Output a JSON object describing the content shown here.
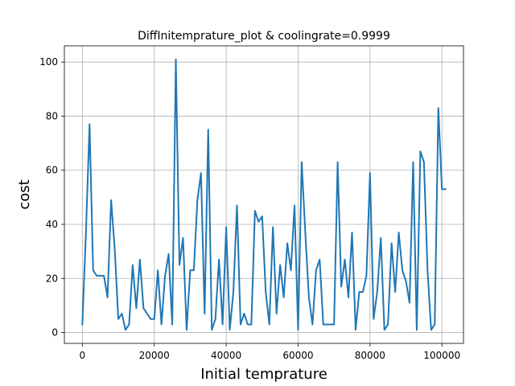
{
  "chart_data": {
    "type": "line",
    "title": "DiffInitemprature_plot & coolingrate=0.9999",
    "xlabel": "Initial temprature",
    "ylabel": "cost",
    "xlim": [
      -5000,
      106000
    ],
    "ylim": [
      -4,
      106
    ],
    "xticks": [
      0,
      20000,
      40000,
      60000,
      80000,
      100000
    ],
    "yticks": [
      0,
      20,
      40,
      60,
      80,
      100
    ],
    "grid": true,
    "series": [
      {
        "name": "",
        "color": "#1f77b4",
        "x": [
          0,
          1000,
          2000,
          3000,
          4000,
          5000,
          6000,
          7000,
          8000,
          9000,
          10000,
          11000,
          12000,
          13000,
          14000,
          15000,
          16000,
          17000,
          18000,
          19000,
          20000,
          21000,
          22000,
          23000,
          24000,
          25000,
          26000,
          27000,
          28000,
          29000,
          30000,
          31000,
          32000,
          33000,
          34000,
          35000,
          36000,
          37000,
          38000,
          39000,
          40000,
          41000,
          42000,
          43000,
          44000,
          45000,
          46000,
          47000,
          48000,
          49000,
          50000,
          51000,
          52000,
          53000,
          54000,
          55000,
          56000,
          57000,
          58000,
          59000,
          60000,
          61000,
          62000,
          63000,
          64000,
          65000,
          66000,
          67000,
          68000,
          69000,
          70000,
          71000,
          72000,
          73000,
          74000,
          75000,
          76000,
          77000,
          78000,
          79000,
          80000,
          81000,
          82000,
          83000,
          84000,
          85000,
          86000,
          87000,
          88000,
          89000,
          90000,
          91000,
          92000,
          93000,
          94000,
          95000,
          96000,
          97000,
          98000,
          99000,
          100000,
          101000
        ],
        "y": [
          3,
          37,
          77,
          23,
          21,
          21,
          21,
          13,
          49,
          31,
          5,
          7,
          1,
          3,
          25,
          9,
          27,
          9,
          7,
          5,
          5,
          23,
          3,
          21,
          29,
          3,
          101,
          25,
          35,
          1,
          23,
          23,
          49,
          59,
          7,
          75,
          1,
          5,
          27,
          3,
          39,
          1,
          15,
          47,
          3,
          7,
          3,
          3,
          45,
          41,
          43,
          15,
          3,
          39,
          7,
          25,
          13,
          33,
          23,
          47,
          1,
          63,
          37,
          13,
          3,
          23,
          27,
          3,
          3,
          3,
          3,
          63,
          17,
          27,
          13,
          37,
          1,
          15,
          15,
          21,
          59,
          5,
          15,
          35,
          1,
          3,
          33,
          15,
          37,
          23,
          19,
          11,
          63,
          1,
          67,
          63,
          23,
          1,
          3,
          83,
          53,
          53
        ]
      }
    ]
  }
}
